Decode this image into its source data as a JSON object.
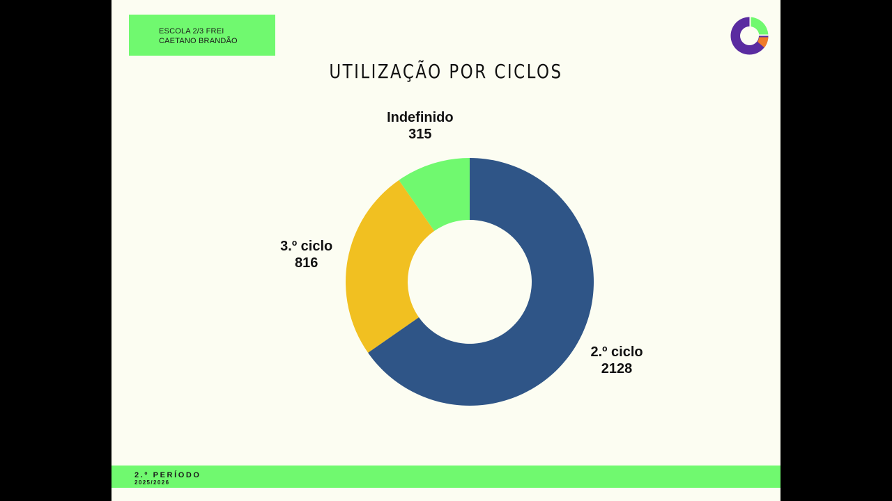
{
  "header": {
    "school_line1": "ESCOLA 2/3 FREI",
    "school_line2": "CAETANO BRANDÃO"
  },
  "logo": {
    "icon": "donut-chart-logo-icon",
    "colors": [
      "#5a2ca0",
      "#70f96f",
      "#f07b2a"
    ]
  },
  "title": "UTILIZAÇÃO POR CICLOS",
  "footer": {
    "period": "2.º PERÍODO",
    "year": "2025/2026"
  },
  "chart_data": {
    "type": "pie",
    "donut": true,
    "title": "UTILIZAÇÃO POR CICLOS",
    "slices": [
      {
        "label": "2.º ciclo",
        "value": 2128,
        "color": "#2f5587"
      },
      {
        "label": "3.º ciclo",
        "value": 816,
        "color": "#f1c021"
      },
      {
        "label": "Indefinido",
        "value": 315,
        "color": "#70f96f"
      }
    ],
    "start": "top",
    "direction": "clockwise",
    "data_labels": "outside"
  },
  "colors": {
    "background": "#fcfdf2",
    "accent": "#70f96f",
    "frame": "#000000"
  }
}
